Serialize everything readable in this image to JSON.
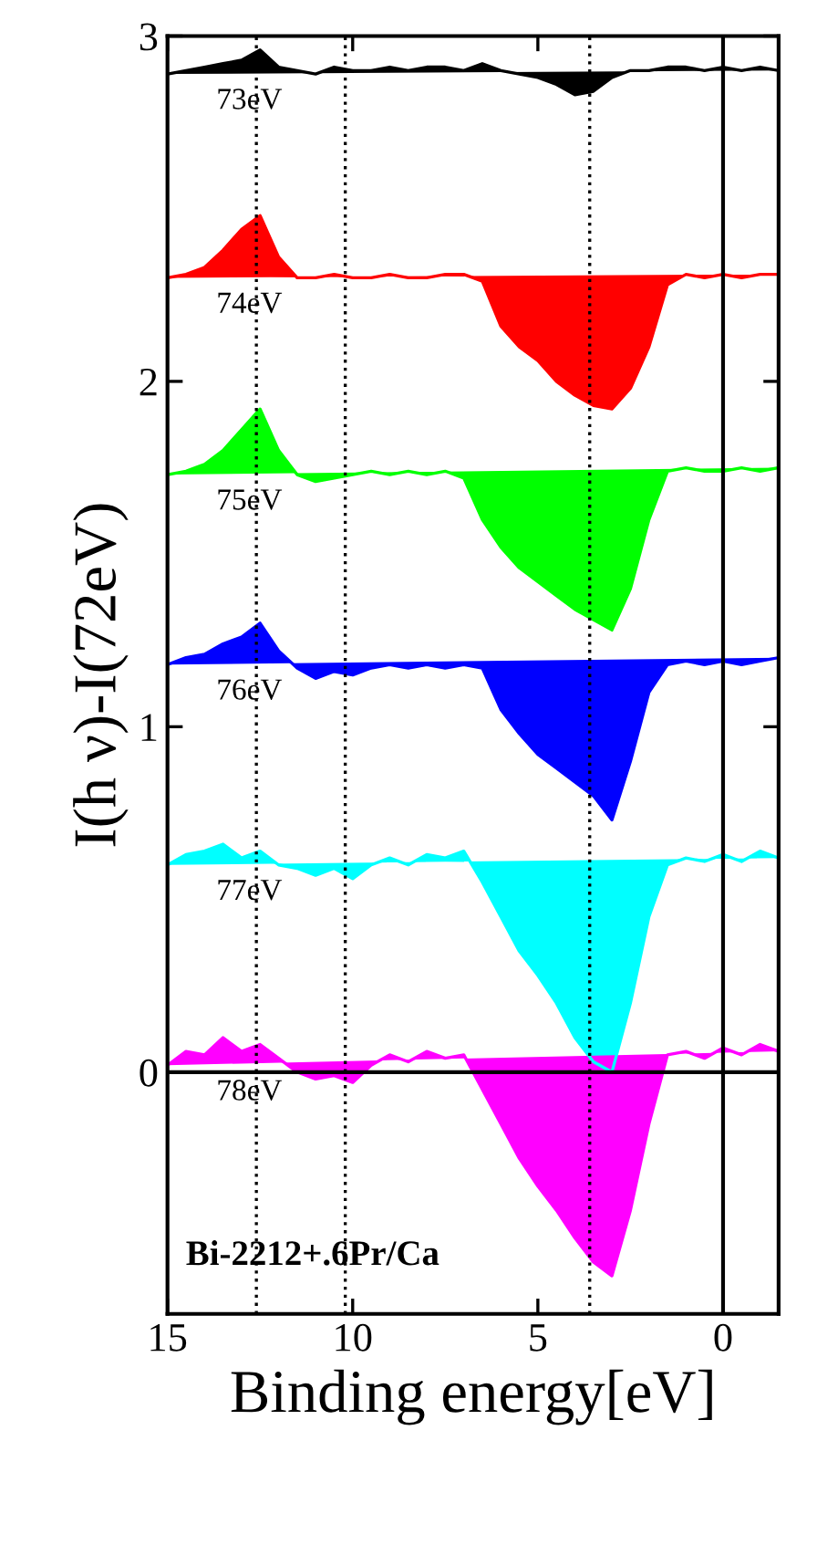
{
  "chart_data": {
    "type": "area",
    "xlabel": "Binding energy[eV]",
    "ylabel": "I(h ν)-I(72eV)",
    "xlim": [
      15,
      -1.5
    ],
    "ylim": [
      -0.7,
      3
    ],
    "xticks": [
      15,
      10,
      5,
      0
    ],
    "yticks": [
      0,
      1,
      2,
      3
    ],
    "legend": false,
    "grid": false,
    "x": [
      15,
      14.5,
      14,
      13.5,
      13,
      12.5,
      12,
      11.5,
      11,
      10.5,
      10,
      9.5,
      9,
      8.5,
      8,
      7.5,
      7,
      6.5,
      6,
      5.5,
      5,
      4.5,
      4,
      3.5,
      3,
      2.5,
      2,
      1.5,
      1,
      0.5,
      0,
      -0.5,
      -1,
      -1.5
    ],
    "series": [
      {
        "name": "73eV",
        "color": "#000000",
        "values": [
          2.89,
          2.9,
          2.91,
          2.92,
          2.93,
          2.96,
          2.91,
          2.9,
          2.89,
          2.91,
          2.9,
          2.9,
          2.91,
          2.9,
          2.91,
          2.91,
          2.9,
          2.92,
          2.9,
          2.89,
          2.88,
          2.86,
          2.83,
          2.84,
          2.88,
          2.9,
          2.9,
          2.91,
          2.91,
          2.9,
          2.91,
          2.9,
          2.91,
          2.9
        ]
      },
      {
        "name": "74eV",
        "color": "#ff0000",
        "values": [
          2.3,
          2.31,
          2.33,
          2.38,
          2.44,
          2.48,
          2.36,
          2.3,
          2.3,
          2.31,
          2.3,
          2.3,
          2.31,
          2.3,
          2.3,
          2.31,
          2.31,
          2.29,
          2.16,
          2.1,
          2.06,
          2.0,
          1.96,
          1.93,
          1.92,
          1.98,
          2.1,
          2.28,
          2.31,
          2.3,
          2.31,
          2.3,
          2.31,
          2.31
        ]
      },
      {
        "name": "75eV",
        "color": "#00ff00",
        "values": [
          1.73,
          1.74,
          1.76,
          1.8,
          1.86,
          1.92,
          1.8,
          1.73,
          1.71,
          1.72,
          1.73,
          1.74,
          1.73,
          1.74,
          1.73,
          1.74,
          1.72,
          1.6,
          1.52,
          1.46,
          1.42,
          1.38,
          1.34,
          1.31,
          1.28,
          1.4,
          1.6,
          1.74,
          1.75,
          1.74,
          1.74,
          1.75,
          1.74,
          1.75
        ]
      },
      {
        "name": "76eV",
        "color": "#0000ff",
        "values": [
          1.18,
          1.2,
          1.21,
          1.24,
          1.26,
          1.3,
          1.22,
          1.17,
          1.14,
          1.16,
          1.15,
          1.17,
          1.18,
          1.17,
          1.18,
          1.17,
          1.18,
          1.17,
          1.05,
          0.98,
          0.92,
          0.88,
          0.84,
          0.8,
          0.73,
          0.9,
          1.1,
          1.18,
          1.19,
          1.18,
          1.19,
          1.18,
          1.19,
          1.2
        ]
      },
      {
        "name": "77eV",
        "color": "#00ffff",
        "values": [
          0.6,
          0.63,
          0.64,
          0.66,
          0.62,
          0.64,
          0.6,
          0.59,
          0.57,
          0.59,
          0.56,
          0.6,
          0.62,
          0.6,
          0.63,
          0.62,
          0.64,
          0.55,
          0.45,
          0.35,
          0.28,
          0.2,
          0.1,
          0.03,
          0.0,
          0.2,
          0.45,
          0.6,
          0.62,
          0.61,
          0.63,
          0.61,
          0.64,
          0.62
        ]
      },
      {
        "name": "78eV",
        "color": "#ff00ff",
        "values": [
          0.02,
          0.06,
          0.05,
          0.1,
          0.06,
          0.08,
          0.04,
          0.0,
          -0.02,
          -0.01,
          -0.03,
          0.02,
          0.05,
          0.03,
          0.06,
          0.04,
          0.05,
          -0.05,
          -0.15,
          -0.25,
          -0.33,
          -0.4,
          -0.48,
          -0.55,
          -0.59,
          -0.4,
          -0.15,
          0.05,
          0.06,
          0.04,
          0.07,
          0.05,
          0.08,
          0.06
        ]
      }
    ],
    "ref_lines": [
      {
        "axis": "x",
        "value": 12.6,
        "line_style": "dotted",
        "color": "#000000"
      },
      {
        "axis": "x",
        "value": 10.2,
        "line_style": "dotted",
        "color": "#000000"
      },
      {
        "axis": "x",
        "value": 3.6,
        "line_style": "dotted",
        "color": "#000000"
      },
      {
        "axis": "x",
        "value": 0,
        "line_style": "solid",
        "color": "#000000"
      },
      {
        "axis": "y",
        "value": 0,
        "line_style": "solid",
        "color": "#000000"
      }
    ],
    "annotations": [
      "Bi-2212+.6Pr/Ca"
    ]
  }
}
